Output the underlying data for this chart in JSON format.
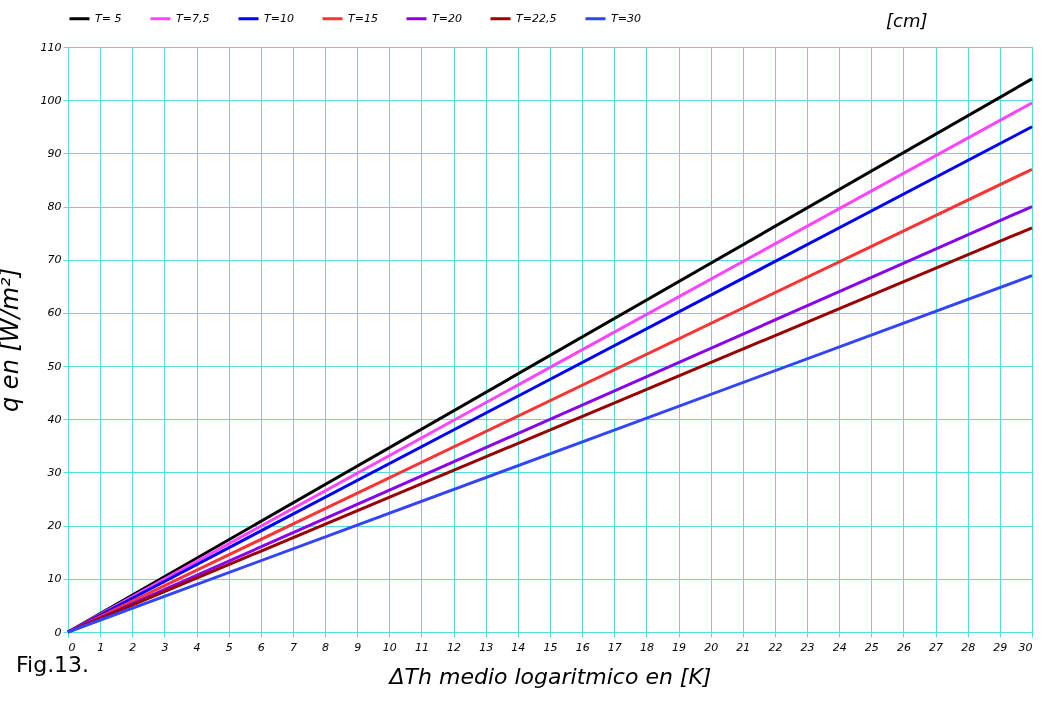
{
  "chart_data": {
    "type": "line",
    "xlabel": "ΔTh medio logaritmico en [K]",
    "ylabel": "q en [W/m²]",
    "annotations": [
      "[cm]",
      "Fig.13."
    ],
    "x": [
      0,
      30
    ],
    "series": [
      {
        "name": "T= 5",
        "color": "#000000",
        "values": [
          0,
          104
        ]
      },
      {
        "name": "T=7,5",
        "color": "#ff44ff",
        "values": [
          0,
          99.5
        ]
      },
      {
        "name": "T=10",
        "color": "#0000ff",
        "values": [
          0,
          95
        ]
      },
      {
        "name": "T=15",
        "color": "#ff3333",
        "values": [
          0,
          87
        ]
      },
      {
        "name": "T=20",
        "color": "#8800ee",
        "values": [
          0,
          80
        ]
      },
      {
        "name": "T=22,5",
        "color": "#990000",
        "values": [
          0,
          76
        ]
      },
      {
        "name": "T=30",
        "color": "#3344ff",
        "values": [
          0,
          67
        ]
      }
    ],
    "xlim": [
      0,
      30
    ],
    "xticks": [
      0,
      1,
      2,
      3,
      4,
      5,
      6,
      7,
      8,
      9,
      10,
      11,
      12,
      13,
      14,
      15,
      16,
      17,
      18,
      19,
      20,
      21,
      22,
      23,
      24,
      25,
      26,
      27,
      28,
      29,
      30
    ],
    "ylim": [
      0,
      110
    ],
    "yticks": [
      0,
      10,
      20,
      30,
      40,
      50,
      60,
      70,
      80,
      90,
      100,
      110
    ],
    "grid": true,
    "legend": "top",
    "line_style": "solid",
    "marker": "none"
  }
}
